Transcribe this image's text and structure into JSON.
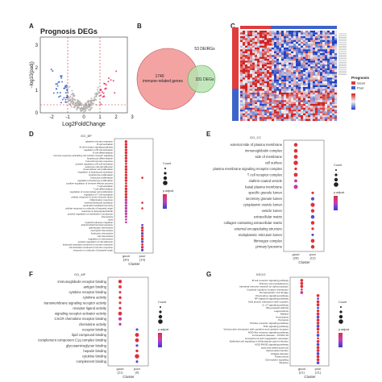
{
  "panel_labels": {
    "a": "A",
    "b": "B",
    "c": "C",
    "d": "D",
    "e": "E",
    "f": "F",
    "g": "G"
  },
  "volcano": {
    "title": "Prognosis DEGs",
    "xlabel": "Log2FoldChange",
    "ylabel": "−log10(padj)",
    "xticks": [
      "-2",
      "-1",
      "0",
      "1",
      "2",
      "3"
    ],
    "yticks": [
      "0",
      "1",
      "2",
      "3"
    ],
    "colors": {
      "up": "#e0306a",
      "down": "#3c64c8",
      "ns": "#b0b0b0"
    }
  },
  "venn": {
    "left_count": "1740",
    "left_label": "immune-related genes",
    "right_count": "331 DEGs",
    "overlap_label": "53 DEIRGs",
    "colors": {
      "left": "#f4a3a3",
      "right": "#b9e3b0"
    }
  },
  "heatmap": {
    "legend_title": "Prognosis",
    "legend_good": "Good",
    "legend_poor": "Poor",
    "colors": {
      "good": "#e03c3c",
      "poor": "#3c64c8",
      "high": "#d02020",
      "low": "#2040c0",
      "mid": "#f5f5f5"
    }
  },
  "dot_d": {
    "header": "GO_BP",
    "terms": [
      "adaptive immune response",
      "B cell activation",
      "B cell receptor signaling pathway",
      "regulation of B cell activation",
      "B cell differentiation",
      "immune response-activating cell surface receptor signaling",
      "lymphocyte differentiation",
      "humoral immune response",
      "positive regulation of B cell activation",
      "leukocyte cell-cell adhesion",
      "mononuclear cell proliferation",
      "regulation of lymphocyte activation",
      "lymphocyte proliferation",
      "leukocyte proliferation",
      "regulation of leukocyte proliferation",
      "positive regulation of immune effector process",
      "T cell activation",
      "T cell differentiation",
      "regulation of mononuclear cell proliferation",
      "regulation of T cell activation",
      "cellular response to tumor necrosis factor",
      "inflammatory response",
      "myeloid leukocyte activation",
      "neutrophil mediated immunity",
      "cellular response to molecule of bacterial origin",
      "response to lipopolysaccharide",
      "positive regulation of interleukin-1 production",
      "chemotaxis",
      "taxis",
      "myeloid leukocyte migration",
      "antimicrobial humoral response",
      "granulocyte chemotaxis",
      "neutrophil chemotaxis",
      "leukocyte chemotaxis",
      "cell chemotaxis",
      "regulation of chemotaxis",
      "positive regulation of cell adhesion",
      "leukocyte activation involved in immune response",
      "cell activation involved in immune response",
      "response to molecule of bacterial origin"
    ],
    "clusters": [
      "good\n(30)",
      "poor\n(10)"
    ],
    "xlabel": "Cluster",
    "legend": {
      "count_title": "Count",
      "padj_title": "p.adjust"
    }
  },
  "dot_e": {
    "header": "GO_CC",
    "terms": [
      "external side of plasma membrane",
      "immunoglobulin complex",
      "side of membrane",
      "cell surface",
      "plasma membrane signaling receptor complex",
      "T cell receptor complex",
      "clathrin-coated vesicle",
      "basal plasma membrane",
      "specific granule lumen",
      "secretory granule lumen",
      "cytoplasmic vesicle lumen",
      "vesicle lumen",
      "extracellular matrix",
      "collagen-containing extracellular matrix",
      "external encapsulating structure",
      "endoplasmic reticulum lumen",
      "fibrinogen complex",
      "primary lysosome"
    ],
    "clusters": [
      "good\n(26)",
      "poor\n(12)"
    ],
    "xlabel": "Cluster"
  },
  "dot_f": {
    "header": "GO_MF",
    "terms": [
      "immunoglobulin receptor binding",
      "antigen binding",
      "cytokine receptor binding",
      "cytokine activity",
      "transmembrane signaling receptor activity",
      "receptor ligand activity",
      "signaling receptor activator activity",
      "CXCR chemokine receptor binding",
      "chemokine activity",
      "receptor binding",
      "lipid compound binding",
      "complement component C1q complex binding",
      "glycosaminoglycan binding",
      "heparin binding",
      "cytokine binding",
      "complement binding"
    ],
    "clusters": [
      "good\n(21)",
      "poor\n(9)"
    ],
    "xlabel": "Cluster"
  },
  "dot_g": {
    "header": "KEGG",
    "terms": [
      "B cell receptor signaling pathway",
      "Primary immunodeficiency",
      "Intestinal immune network for IgA production",
      "Cytokine-cytokine receptor interaction",
      "Hematopoietic cell lineage",
      "Chemokine signaling pathway",
      "NF-kappa B signaling pathway",
      "Viral protein interaction with cytokine",
      "IL-17 signaling pathway",
      "Rheumatoid arthritis",
      "Legionellosis",
      "Malaria",
      "Amoebiasis",
      "Pertussis",
      "Toll-like receptor signaling pathway",
      "TNF signaling pathway",
      "Viral protein interaction with cytokine and cytokine receptor",
      "NOD-like receptor signaling pathway",
      "Coronavirus disease - COVID-19",
      "Complement and coagulation cascades",
      "Epithelial cell signaling in Helicobacter pylori infection",
      "AGE-RAGE signaling pathway",
      "Lipid and atherosclerosis",
      "Salmonella infection",
      "Chagas disease",
      "Tuberculosis",
      "Chemokine signaling",
      "Measles"
    ],
    "clusters": [
      "good\n(21)",
      "poor\n(21)"
    ],
    "xlabel": "Cluster"
  }
}
